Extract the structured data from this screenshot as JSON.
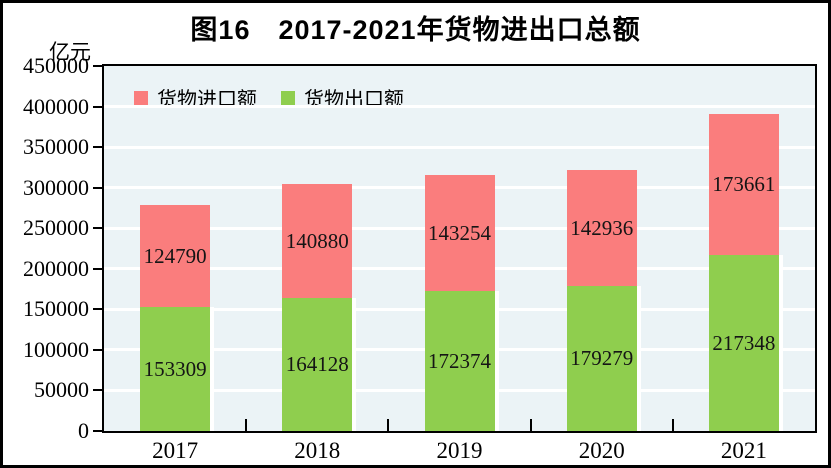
{
  "figure": {
    "title": "图16　2017-2021年货物进出口总额",
    "unit_label": "亿元"
  },
  "legend": [
    {
      "label": "货物进口额",
      "color": "#FA7D7D"
    },
    {
      "label": "货物出口额",
      "color": "#8FCE4E"
    }
  ],
  "chart_data": {
    "type": "bar",
    "stacked": true,
    "title": "图16　2017-2021年货物进出口总额",
    "ylabel": "亿元",
    "xlabel": "",
    "categories": [
      "2017",
      "2018",
      "2019",
      "2020",
      "2021"
    ],
    "series": [
      {
        "name": "货物出口额",
        "color": "#8FCE4E",
        "values": [
          153309,
          164128,
          172374,
          179279,
          217348
        ]
      },
      {
        "name": "货物进口额",
        "color": "#FA7D7D",
        "values": [
          124790,
          140880,
          143254,
          142936,
          173661
        ]
      }
    ],
    "totals": [
      278099,
      305008,
      315628,
      322215,
      391009
    ],
    "ylim": [
      0,
      450000
    ],
    "ytick_step": 50000,
    "grid": true,
    "gridline_color": "#FFFFFF",
    "plot_bg": "#EBF3F6",
    "legend_position": "top-left-inside",
    "data_labels": "centered-in-segment"
  }
}
